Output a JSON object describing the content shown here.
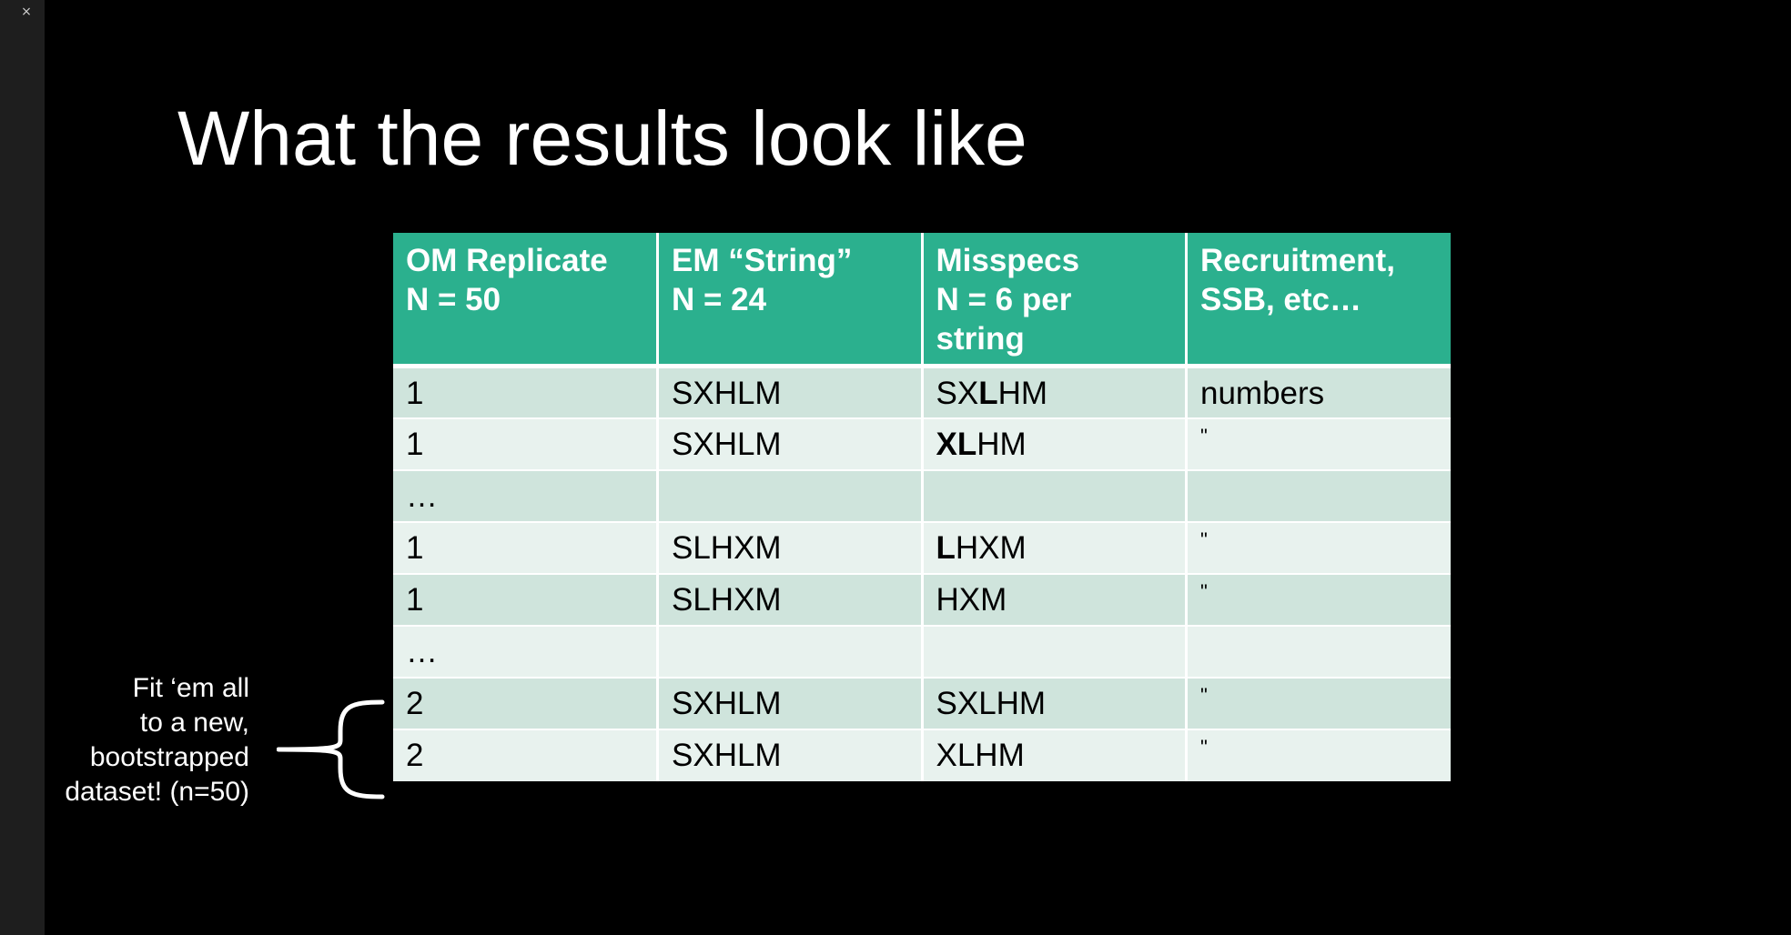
{
  "window": {
    "close_glyph": "×"
  },
  "slide": {
    "title": "What the results look like"
  },
  "table": {
    "headers": [
      [
        "OM Replicate",
        "N = 50"
      ],
      [
        "EM “String”",
        "N = 24"
      ],
      [
        "Misspecs",
        "N = 6 per",
        "string"
      ],
      [
        "Recruitment,",
        "SSB, etc…"
      ]
    ],
    "rows": [
      {
        "replicate": "1",
        "em_string": "SXHLM",
        "misspec": [
          "SX",
          "L",
          "HM"
        ],
        "result": "numbers"
      },
      {
        "replicate": "1",
        "em_string": "SXHLM",
        "misspec": [
          "X",
          "L",
          "HM"
        ],
        "result": "\""
      },
      {
        "replicate": "…",
        "em_string": "",
        "misspec": [
          "",
          "",
          ""
        ],
        "result": ""
      },
      {
        "replicate": "1",
        "em_string": "SLHXM",
        "misspec": [
          "",
          "L",
          "HXM"
        ],
        "result": "\""
      },
      {
        "replicate": "1",
        "em_string": "SLHXM",
        "misspec": [
          "HXM",
          "",
          ""
        ],
        "result": "\""
      },
      {
        "replicate": "…",
        "em_string": "",
        "misspec": [
          "",
          "",
          ""
        ],
        "result": ""
      },
      {
        "replicate": "2",
        "em_string": "SXHLM",
        "misspec": [
          "SXLHM",
          "",
          ""
        ],
        "result": "\""
      },
      {
        "replicate": "2",
        "em_string": "SXHLM",
        "misspec": [
          "XLHM",
          "",
          ""
        ],
        "result": "\""
      }
    ]
  },
  "annotation": {
    "lines": [
      "Fit ‘em all",
      "to a new,",
      "bootstrapped",
      "dataset! (n=50)"
    ]
  }
}
